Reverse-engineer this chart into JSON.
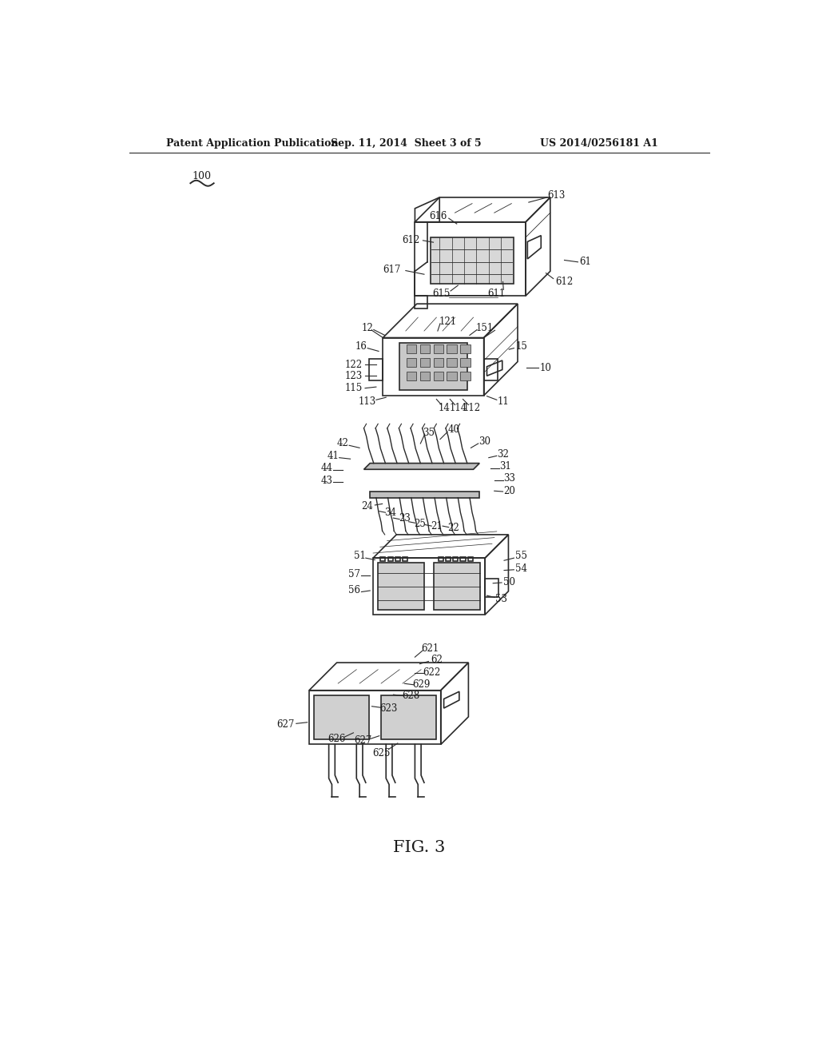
{
  "header_left": "Patent Application Publication",
  "header_center": "Sep. 11, 2014  Sheet 3 of 5",
  "header_right": "US 2014/0256181 A1",
  "fig_caption": "FIG. 3",
  "bg_color": "#ffffff",
  "line_color": "#2a2a2a",
  "text_color": "#1a1a1a",
  "header_fontsize": 9,
  "label_fontsize": 8.5,
  "fig_caption_fontsize": 15,
  "ref_num": "100"
}
